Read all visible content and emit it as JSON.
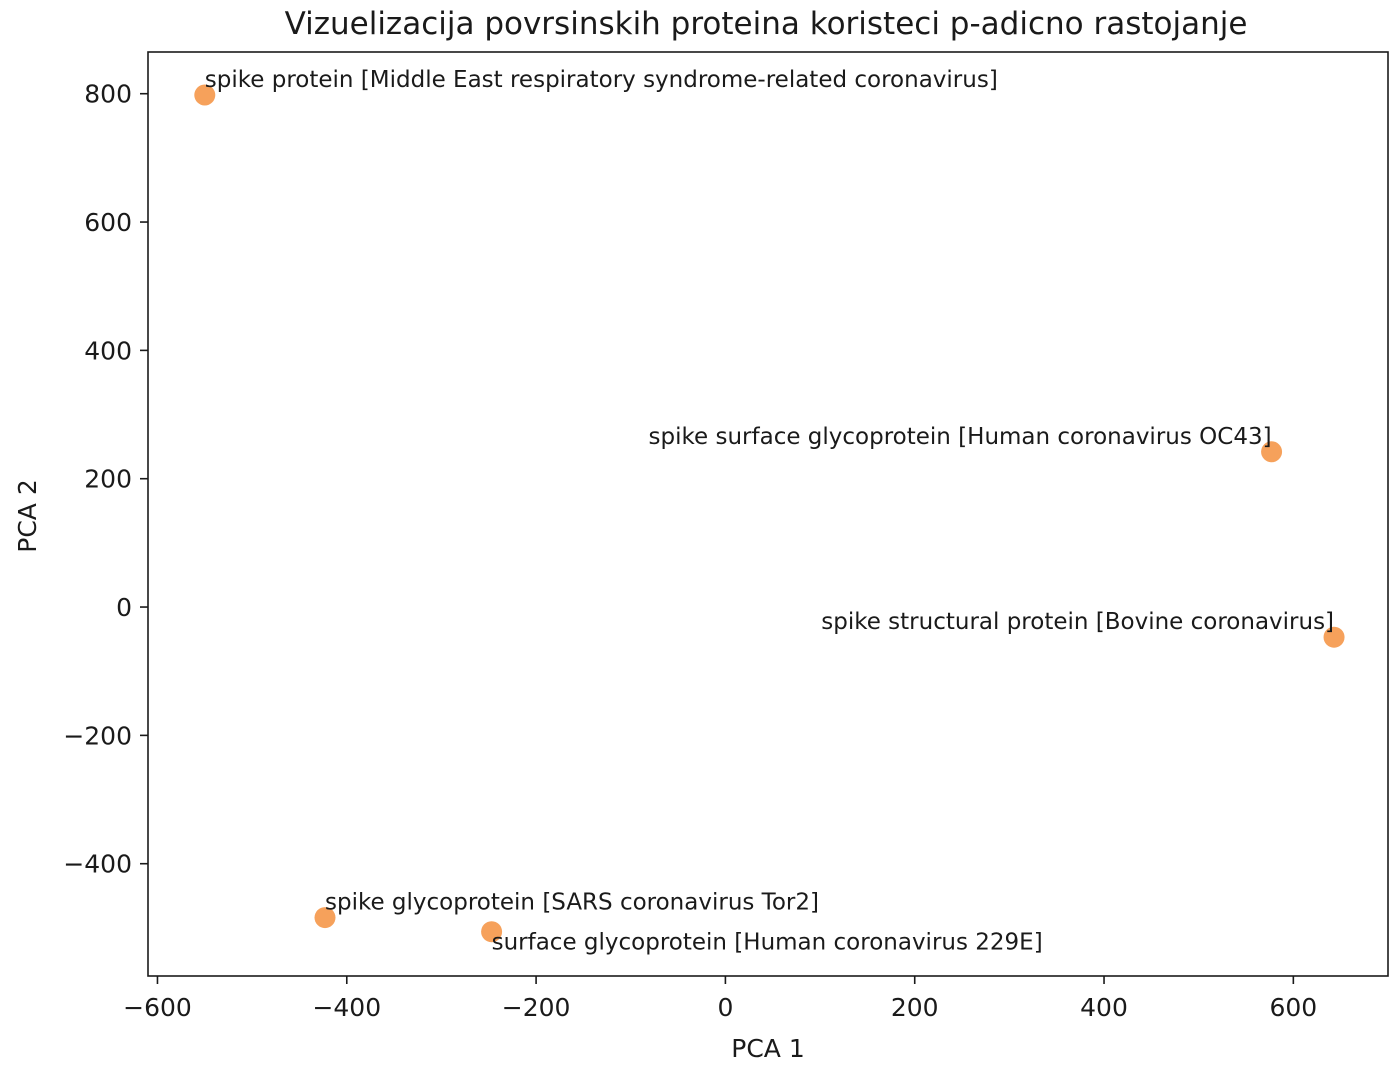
{
  "chart_data": {
    "type": "scatter",
    "title": "Vizuelizacija povrsinskih proteina koristeci p-adicno rastojanje",
    "xlabel": "PCA 1",
    "ylabel": "PCA 2",
    "xlim": [
      -610,
      700
    ],
    "ylim": [
      -575,
      865
    ],
    "xticks": [
      -600,
      -400,
      -200,
      0,
      200,
      400,
      600
    ],
    "yticks": [
      -400,
      -200,
      0,
      200,
      400,
      600,
      800
    ],
    "xtick_labels": [
      "−600",
      "−400",
      "−200",
      "0",
      "200",
      "400",
      "600"
    ],
    "ytick_labels": [
      "−400",
      "−200",
      "0",
      "200",
      "400",
      "600",
      "800"
    ],
    "grid": false,
    "point_color": "#f5913e",
    "points": [
      {
        "x": -550,
        "y": 798,
        "label": "spike protein [Middle East respiratory syndrome-related coronavirus]",
        "align": "start",
        "pos": "above"
      },
      {
        "x": 577,
        "y": 242,
        "label": "spike surface glycoprotein [Human coronavirus OC43]",
        "align": "end",
        "pos": "above"
      },
      {
        "x": 643,
        "y": -47,
        "label": "spike structural protein [Bovine coronavirus]",
        "align": "end",
        "pos": "above"
      },
      {
        "x": -423,
        "y": -484,
        "label": "spike glycoprotein [SARS coronavirus Tor2]",
        "align": "start",
        "pos": "above"
      },
      {
        "x": -247,
        "y": -506,
        "label": "surface glycoprotein [Human coronavirus 229E]",
        "align": "start",
        "pos": "below"
      }
    ]
  }
}
